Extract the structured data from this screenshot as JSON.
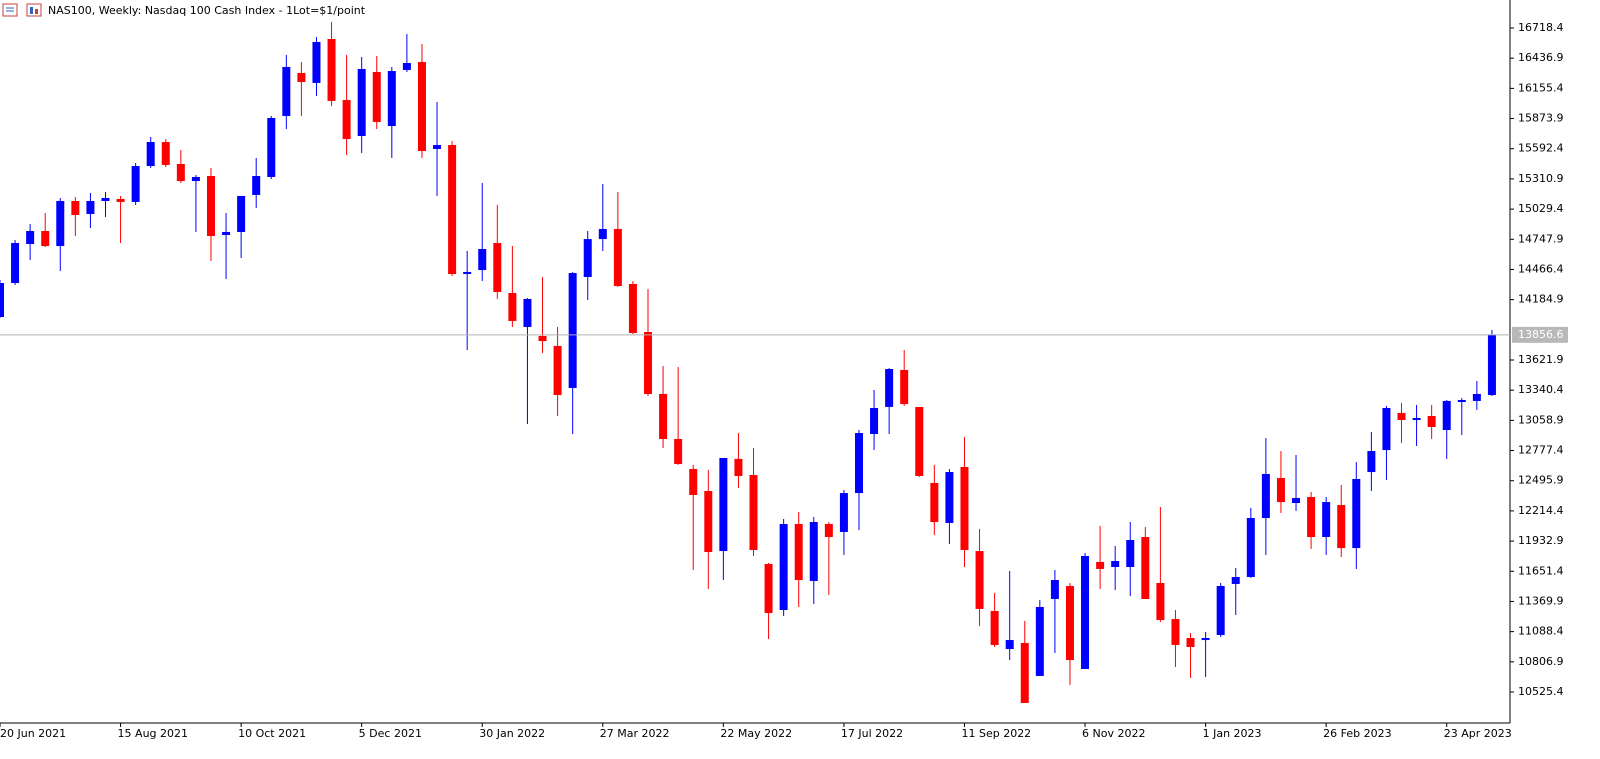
{
  "chart_data": {
    "type": "candlestick",
    "title": "NAS100, Weekly:  Nasdaq 100 Cash Index - 1Lot=$1/point",
    "categories": [
      "20 Jun 2021",
      null,
      null,
      null,
      null,
      null,
      null,
      null,
      "15 Aug 2021",
      null,
      null,
      null,
      null,
      null,
      null,
      null,
      "10 Oct 2021",
      null,
      null,
      null,
      null,
      null,
      null,
      null,
      "5 Dec 2021",
      null,
      null,
      null,
      null,
      null,
      null,
      null,
      "30 Jan 2022",
      null,
      null,
      null,
      null,
      null,
      null,
      null,
      "27 Mar 2022",
      null,
      null,
      null,
      null,
      null,
      null,
      null,
      "22 May 2022",
      null,
      null,
      null,
      null,
      null,
      null,
      null,
      "17 Jul 2022",
      null,
      null,
      null,
      null,
      null,
      null,
      null,
      "11 Sep 2022",
      null,
      null,
      null,
      null,
      null,
      null,
      null,
      "6 Nov 2022",
      null,
      null,
      null,
      null,
      null,
      null,
      null,
      "1 Jan 2023",
      null,
      null,
      null,
      null,
      null,
      null,
      null,
      "26 Feb 2023",
      null,
      null,
      null,
      null,
      null,
      null,
      null,
      "23 Apr 2023",
      null,
      null,
      null
    ],
    "open": [
      14023,
      14340,
      14704,
      14825,
      14685,
      15105,
      14984,
      15105,
      15124,
      15096,
      15431,
      15655,
      15450,
      15291,
      15338,
      14788,
      14816,
      15161,
      15329,
      15898,
      16299,
      16206,
      16616,
      16047,
      15711,
      16308,
      15804,
      16327,
      16401,
      15590,
      15627,
      14424,
      14461,
      14713,
      14247,
      13930,
      13846,
      13753,
      13361,
      14396,
      14750,
      14844,
      14331,
      13883,
      13305,
      12885,
      12605,
      12400,
      11840,
      12699,
      12549,
      11719,
      11290,
      12092,
      11561,
      12092,
      12018,
      12381,
      12932,
      13184,
      13529,
      13184,
      12475,
      12102,
      12624,
      11840,
      11281,
      10926,
      10982,
      10675,
      11393,
      11514,
      10740,
      11738,
      11691,
      11691,
      11971,
      11542,
      11206,
      11029,
      11010,
      11057,
      11533,
      11598,
      12148,
      12521,
      12288,
      12344,
      11971,
      12269,
      11868,
      12577,
      12782,
      13128,
      13062,
      13100,
      12969,
      13230,
      13240,
      13295
    ],
    "high": [
      14368,
      14741,
      14890,
      14993,
      15133,
      15142,
      15180,
      15189,
      15152,
      15459,
      15702,
      15683,
      15581,
      15347,
      15413,
      14993,
      15152,
      15506,
      15898,
      16467,
      16401,
      16635,
      16774,
      16467,
      16448,
      16457,
      16355,
      16662,
      16569,
      16028,
      15664,
      14639,
      15273,
      15068,
      14685,
      14200,
      14396,
      13930,
      14443,
      14825,
      15263,
      15189,
      14359,
      14284,
      13566,
      13557,
      12643,
      12596,
      12708,
      12941,
      12801,
      11729,
      12139,
      12204,
      12158,
      12111,
      12409,
      12969,
      13342,
      13547,
      13715,
      13184,
      12643,
      12605,
      12904,
      12046,
      11449,
      11654,
      11188,
      11383,
      11663,
      11542,
      11822,
      12074,
      11887,
      12111,
      12064,
      12251,
      11290,
      11076,
      11085,
      11542,
      11682,
      12242,
      12894,
      12773,
      12736,
      12391,
      12344,
      12456,
      12670,
      12950,
      13193,
      13221,
      13202,
      13202,
      13249,
      13267,
      13426,
      13902
    ],
    "low": [
      14014,
      14321,
      14555,
      14676,
      14452,
      14778,
      14853,
      14956,
      14713,
      15068,
      15413,
      15422,
      15273,
      14816,
      14545,
      14377,
      14573,
      15040,
      15310,
      15776,
      15898,
      16084,
      15991,
      15534,
      15553,
      15776,
      15506,
      16308,
      15506,
      15152,
      14405,
      13715,
      14359,
      14191,
      13930,
      13025,
      13687,
      13100,
      12932,
      14182,
      14639,
      14303,
      13864,
      13286,
      12801,
      12643,
      11663,
      11486,
      11570,
      12428,
      11794,
      11020,
      11234,
      11318,
      11346,
      11430,
      11803,
      12036,
      12782,
      12932,
      13193,
      12531,
      11990,
      11906,
      11691,
      11141,
      10945,
      10824,
      10423,
      10675,
      10889,
      10591,
      10740,
      11486,
      11477,
      11421,
      11393,
      11178,
      10759,
      10656,
      10665,
      11038,
      11244,
      11589,
      11803,
      12195,
      12214,
      11859,
      11803,
      11784,
      11673,
      12400,
      12503,
      12848,
      12820,
      12885,
      12699,
      12922,
      13156,
      13286
    ],
    "close": [
      14340,
      14713,
      14825,
      14685,
      15105,
      14974,
      15105,
      15133,
      15096,
      15431,
      15655,
      15441,
      15291,
      15329,
      14778,
      14816,
      15152,
      15338,
      15879,
      16355,
      16215,
      16588,
      16038,
      15683,
      16336,
      15842,
      16317,
      16392,
      15571,
      15627,
      14424,
      14443,
      14657,
      14256,
      13986,
      14191,
      13799,
      13295,
      14433,
      14750,
      14844,
      14312,
      13874,
      13305,
      12885,
      12652,
      12363,
      11831,
      12708,
      12540,
      11850,
      11262,
      12092,
      11570,
      12111,
      11971,
      12381,
      12941,
      13174,
      13538,
      13212,
      12540,
      12111,
      12577,
      11850,
      11300,
      10964,
      11010,
      10423,
      11318,
      11570,
      10824,
      11794,
      11673,
      11747,
      11943,
      11393,
      11197,
      10964,
      10945,
      11029,
      11514,
      11598,
      12148,
      12559,
      12297,
      12335,
      11971,
      12297,
      11868,
      12512,
      12773,
      13174,
      13062,
      13081,
      12997,
      13240,
      13249,
      13305,
      13856.6
    ],
    "up_color": "#0000ff",
    "down_color": "#ff0000",
    "current_price": 13856.6,
    "ylim": [
      10236.2,
      16979.6
    ],
    "yticks": [
      16718.4,
      16436.9,
      16155.4,
      15873.9,
      15592.4,
      15310.9,
      15029.4,
      14747.9,
      14466.4,
      14184.9,
      13621.9,
      13340.4,
      13058.9,
      12777.4,
      12495.9,
      12214.4,
      11932.9,
      11651.4,
      11369.9,
      11088.4,
      10806.9,
      10525.4
    ]
  }
}
